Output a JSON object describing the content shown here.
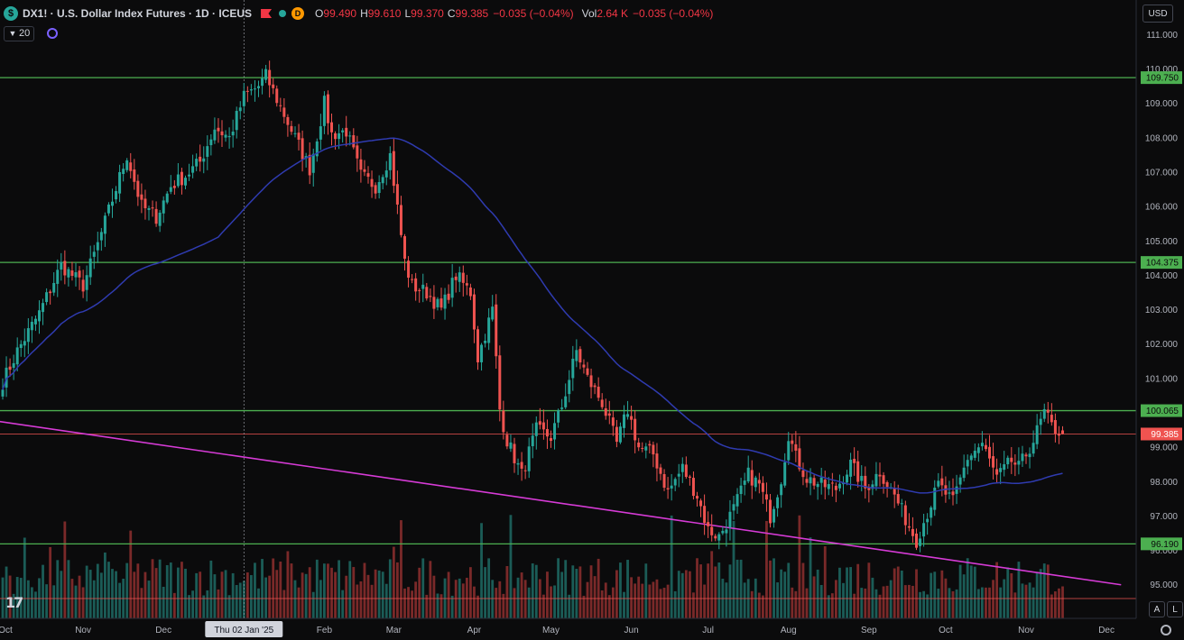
{
  "header": {
    "symbol": "DX1! · U.S. Dollar Index Futures · 1D · ICEUS",
    "d_badge": "D",
    "open_label": "O",
    "open": "99.490",
    "high_label": "H",
    "high": "99.610",
    "low_label": "L",
    "low": "99.370",
    "close_label": "C",
    "close": "99.385",
    "change": "−0.035 (−0.04%)",
    "vol_label": "Vol",
    "vol": "2.64 K",
    "vol_change": "−0.035 (−0.04%)"
  },
  "indicator": {
    "ma_period": "20"
  },
  "currency": "USD",
  "buttons": {
    "auto": "A",
    "log": "L"
  },
  "crosshair_label": "Thu 02 Jan '25",
  "colors": {
    "up": "#26a69a",
    "down": "#ef5350",
    "hline": "#4caf50",
    "ma": "#2f3bb0",
    "trendline": "#d63bd6",
    "price_line": "#ef5350",
    "vol_up": "#1e6b65",
    "vol_down": "#8e2f2f"
  },
  "chart_data": {
    "type": "candlestick",
    "y_axis": {
      "range": [
        94.6,
        111.3
      ],
      "tick_labels": [
        "111.000",
        "110.000",
        "109.000",
        "108.000",
        "107.000",
        "106.000",
        "105.000",
        "104.000",
        "103.000",
        "102.000",
        "101.000",
        "100.000",
        "99.000",
        "98.000",
        "97.000",
        "96.000",
        "95.000"
      ],
      "ticks": [
        111,
        110,
        109,
        108,
        107,
        106,
        105,
        104,
        103,
        102,
        101,
        100,
        99,
        98,
        97,
        96,
        95
      ]
    },
    "x_axis": {
      "labels": [
        "Oct",
        "Nov",
        "Dec",
        "Feb",
        "Mar",
        "Apr",
        "May",
        "Jun",
        "Jul",
        "Aug",
        "Sep",
        "Oct",
        "Nov",
        "Dec"
      ],
      "label_bar_index": [
        0,
        22,
        44,
        88,
        107,
        129,
        150,
        172,
        193,
        215,
        237,
        258,
        280,
        302
      ]
    },
    "crosshair_bar_index": 66,
    "horizontal_levels": [
      {
        "value": 109.75,
        "label": "109.750"
      },
      {
        "value": 104.375,
        "label": "104.375"
      },
      {
        "value": 100.065,
        "label": "100.065"
      },
      {
        "value": 96.19,
        "label": "96.190"
      }
    ],
    "last_price": {
      "value": 99.385,
      "label": "99.385"
    },
    "trendline": {
      "from": {
        "bar": -1,
        "value": 99.75
      },
      "to": {
        "bar": 306,
        "value": 95.0
      }
    },
    "ma_period": 20,
    "close_anchors": [
      [
        0,
        100.9
      ],
      [
        4,
        101.8
      ],
      [
        10,
        102.9
      ],
      [
        16,
        104.3
      ],
      [
        22,
        103.7
      ],
      [
        26,
        104.9
      ],
      [
        30,
        106.2
      ],
      [
        34,
        107.5
      ],
      [
        38,
        106.0
      ],
      [
        42,
        105.7
      ],
      [
        46,
        106.6
      ],
      [
        50,
        106.9
      ],
      [
        54,
        107.3
      ],
      [
        58,
        108.3
      ],
      [
        62,
        108.0
      ],
      [
        66,
        109.2
      ],
      [
        70,
        109.5
      ],
      [
        72,
        109.8
      ],
      [
        76,
        108.9
      ],
      [
        80,
        108.0
      ],
      [
        84,
        107.1
      ],
      [
        88,
        109.0
      ],
      [
        90,
        108.1
      ],
      [
        94,
        108.2
      ],
      [
        98,
        106.9
      ],
      [
        102,
        106.6
      ],
      [
        106,
        107.5
      ],
      [
        110,
        104.4
      ],
      [
        112,
        103.7
      ],
      [
        116,
        103.5
      ],
      [
        120,
        103.0
      ],
      [
        124,
        104.0
      ],
      [
        128,
        103.5
      ],
      [
        130,
        101.6
      ],
      [
        134,
        103.0
      ],
      [
        136,
        100.1
      ],
      [
        138,
        99.2
      ],
      [
        142,
        98.2
      ],
      [
        146,
        99.5
      ],
      [
        150,
        99.3
      ],
      [
        153,
        100.2
      ],
      [
        157,
        101.8
      ],
      [
        160,
        101.0
      ],
      [
        164,
        100.3
      ],
      [
        168,
        99.1
      ],
      [
        171,
        100.1
      ],
      [
        174,
        99.0
      ],
      [
        178,
        98.8
      ],
      [
        182,
        97.7
      ],
      [
        186,
        98.4
      ],
      [
        190,
        97.6
      ],
      [
        193,
        96.6
      ],
      [
        196,
        96.4
      ],
      [
        200,
        97.2
      ],
      [
        204,
        98.2
      ],
      [
        207,
        97.9
      ],
      [
        210,
        97.0
      ],
      [
        213,
        98.1
      ],
      [
        215,
        99.4
      ],
      [
        217,
        98.7
      ],
      [
        220,
        98.1
      ],
      [
        224,
        97.9
      ],
      [
        228,
        97.8
      ],
      [
        232,
        98.5
      ],
      [
        236,
        97.8
      ],
      [
        240,
        98.3
      ],
      [
        244,
        97.6
      ],
      [
        248,
        96.7
      ],
      [
        250,
        96.3
      ],
      [
        253,
        97.1
      ],
      [
        256,
        97.9
      ],
      [
        260,
        97.4
      ],
      [
        264,
        98.7
      ],
      [
        268,
        99.1
      ],
      [
        272,
        98.1
      ],
      [
        276,
        98.6
      ],
      [
        278,
        98.4
      ],
      [
        282,
        99.2
      ],
      [
        285,
        100.0
      ],
      [
        287,
        99.6
      ],
      [
        290,
        99.385
      ]
    ]
  }
}
